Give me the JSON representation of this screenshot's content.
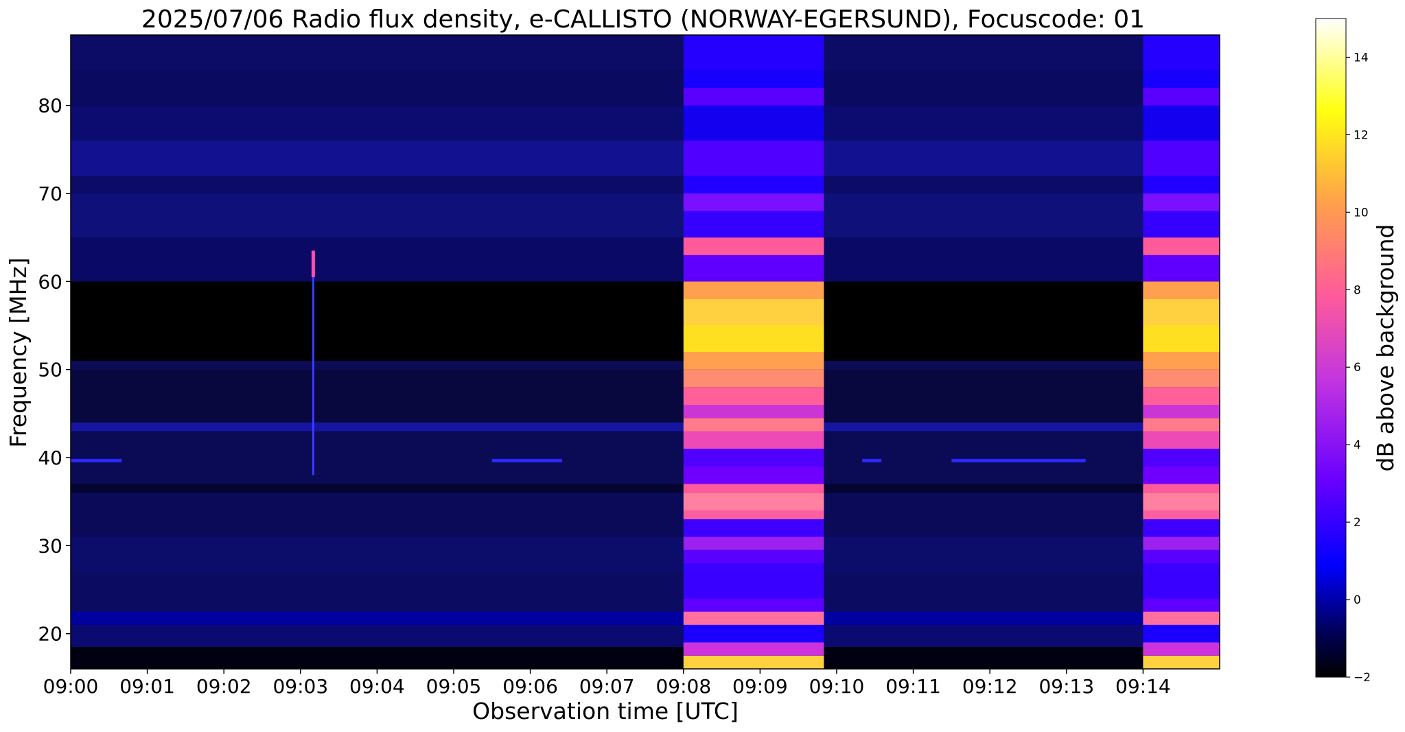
{
  "chart_data": {
    "type": "heatmap",
    "title": "2025/07/06  Radio flux density, e-CALLISTO (NORWAY-EGERSUND), Focuscode: 01",
    "xlabel": "Observation time [UTC]",
    "ylabel": "Frequency [MHz]",
    "x_range_seconds_after_0900": [
      0,
      900
    ],
    "ylim": [
      16,
      88
    ],
    "x_ticks": [
      "09:00",
      "09:01",
      "09:02",
      "09:03",
      "09:04",
      "09:05",
      "09:06",
      "09:07",
      "09:08",
      "09:09",
      "09:10",
      "09:11",
      "09:12",
      "09:13",
      "09:14"
    ],
    "y_ticks": [
      20,
      30,
      40,
      50,
      60,
      70,
      80
    ],
    "colorbar": {
      "label": "dB above background",
      "range": [
        -2,
        15
      ],
      "ticks": [
        -2,
        0,
        2,
        4,
        6,
        8,
        10,
        12,
        14
      ],
      "colormap": "gnuplot2",
      "stops": [
        "#000000",
        "#00007f",
        "#0000ff",
        "#5f00ff",
        "#cf2fd0",
        "#ff6f8f",
        "#ffbf3f",
        "#ffff10",
        "#ffffff"
      ]
    },
    "bursts": [
      {
        "start": "09:08",
        "end": "09:09:50",
        "kind": "calibration broadband"
      },
      {
        "start": "09:14",
        "end": "09:15",
        "kind": "calibration broadband"
      }
    ],
    "spike_time": "09:03:10"
  }
}
